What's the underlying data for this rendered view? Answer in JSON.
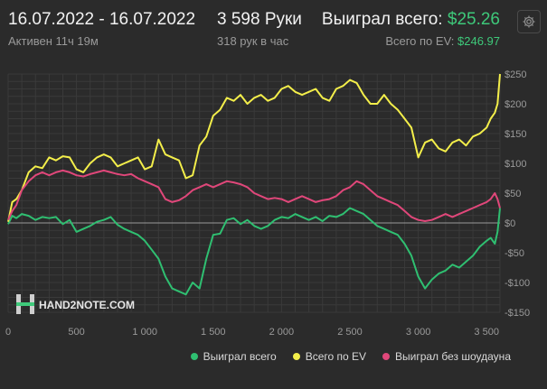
{
  "header": {
    "date_range": "16.07.2022 - 16.07.2022",
    "active_time": "Активен 11ч 19м",
    "hands_count": "3 598 Руки",
    "hands_rate": "318 рук в час",
    "won_label": "Выиграл всего:",
    "won_value": "$25.26",
    "ev_label": "Всего по EV:",
    "ev_value": "$246.97"
  },
  "settings": {
    "icon": "gear-icon"
  },
  "watermark": {
    "text": "HAND2NOTE.COM",
    "icon": "h2n-logo-icon"
  },
  "colors": {
    "won": "#2fbf71",
    "ev": "#f3ee4a",
    "noshowdown": "#e0477a",
    "grid": "#3a3a3a",
    "zero_line": "#9a9a9a"
  },
  "chart_data": {
    "type": "line",
    "xlim": [
      0,
      3598
    ],
    "ylim": [
      -150,
      250
    ],
    "x_ticks": [
      0,
      500,
      1000,
      1500,
      2000,
      2500,
      3000,
      3500
    ],
    "x_tick_labels": [
      "0",
      "500",
      "1 000",
      "1 500",
      "2 000",
      "2 500",
      "3 000",
      "3 500"
    ],
    "y_ticks": [
      250,
      200,
      150,
      100,
      50,
      0,
      -50,
      -100,
      -150
    ],
    "y_tick_labels": [
      "$250",
      "$200",
      "$150",
      "$100",
      "$50",
      "$0",
      "-$50",
      "-$100",
      "-$150"
    ],
    "grid": true,
    "legend_position": "bottom-right",
    "series": [
      {
        "name": "Выиграл всего",
        "key": "won",
        "x": [
          0,
          30,
          60,
          100,
          150,
          200,
          250,
          300,
          350,
          400,
          450,
          500,
          550,
          600,
          650,
          700,
          750,
          800,
          850,
          900,
          950,
          1000,
          1050,
          1100,
          1150,
          1200,
          1250,
          1300,
          1350,
          1400,
          1450,
          1500,
          1550,
          1600,
          1650,
          1700,
          1750,
          1800,
          1850,
          1900,
          1950,
          2000,
          2050,
          2100,
          2150,
          2200,
          2250,
          2300,
          2350,
          2400,
          2450,
          2500,
          2550,
          2600,
          2650,
          2700,
          2750,
          2800,
          2850,
          2900,
          2950,
          3000,
          3050,
          3100,
          3150,
          3200,
          3250,
          3300,
          3350,
          3400,
          3450,
          3500,
          3530,
          3560,
          3580,
          3598
        ],
        "y": [
          -2,
          12,
          8,
          15,
          12,
          5,
          10,
          8,
          10,
          -2,
          5,
          -15,
          -10,
          -5,
          2,
          5,
          10,
          -3,
          -10,
          -15,
          -20,
          -30,
          -45,
          -60,
          -90,
          -110,
          -115,
          -120,
          -100,
          -110,
          -60,
          -20,
          -18,
          5,
          8,
          -2,
          5,
          -5,
          -10,
          -5,
          5,
          10,
          8,
          15,
          10,
          5,
          10,
          3,
          12,
          10,
          15,
          25,
          20,
          15,
          5,
          -5,
          -10,
          -15,
          -20,
          -35,
          -55,
          -90,
          -110,
          -95,
          -85,
          -80,
          -70,
          -75,
          -65,
          -55,
          -40,
          -30,
          -25,
          -35,
          -15,
          25
        ]
      },
      {
        "name": "Всего по EV",
        "key": "ev",
        "x": [
          0,
          30,
          60,
          100,
          150,
          200,
          250,
          300,
          350,
          400,
          450,
          500,
          550,
          600,
          650,
          700,
          750,
          800,
          850,
          900,
          950,
          1000,
          1050,
          1100,
          1150,
          1200,
          1250,
          1300,
          1350,
          1400,
          1450,
          1500,
          1550,
          1600,
          1650,
          1700,
          1750,
          1800,
          1850,
          1900,
          1950,
          2000,
          2050,
          2100,
          2150,
          2200,
          2250,
          2300,
          2350,
          2400,
          2450,
          2500,
          2550,
          2600,
          2650,
          2700,
          2750,
          2800,
          2850,
          2900,
          2950,
          3000,
          3050,
          3100,
          3150,
          3200,
          3250,
          3300,
          3350,
          3400,
          3450,
          3500,
          3530,
          3560,
          3580,
          3598
        ],
        "y": [
          2,
          35,
          40,
          55,
          85,
          95,
          92,
          110,
          105,
          112,
          110,
          90,
          85,
          100,
          110,
          115,
          110,
          95,
          100,
          105,
          110,
          90,
          95,
          140,
          115,
          110,
          105,
          75,
          80,
          130,
          145,
          180,
          190,
          210,
          205,
          215,
          200,
          210,
          215,
          205,
          210,
          225,
          230,
          220,
          215,
          220,
          225,
          210,
          205,
          225,
          230,
          240,
          235,
          215,
          200,
          200,
          215,
          200,
          190,
          175,
          160,
          110,
          135,
          140,
          125,
          120,
          135,
          140,
          130,
          145,
          150,
          160,
          175,
          185,
          200,
          250
        ]
      },
      {
        "name": "Выиграл без шоудауна",
        "key": "noshowdown",
        "x": [
          0,
          30,
          60,
          100,
          150,
          200,
          250,
          300,
          350,
          400,
          450,
          500,
          550,
          600,
          650,
          700,
          750,
          800,
          850,
          900,
          950,
          1000,
          1050,
          1100,
          1150,
          1200,
          1250,
          1300,
          1350,
          1400,
          1450,
          1500,
          1550,
          1600,
          1650,
          1700,
          1750,
          1800,
          1850,
          1900,
          1950,
          2000,
          2050,
          2100,
          2150,
          2200,
          2250,
          2300,
          2350,
          2400,
          2450,
          2500,
          2550,
          2600,
          2650,
          2700,
          2750,
          2800,
          2850,
          2900,
          2950,
          3000,
          3050,
          3100,
          3150,
          3200,
          3250,
          3300,
          3350,
          3400,
          3450,
          3500,
          3530,
          3560,
          3580,
          3598
        ],
        "y": [
          5,
          20,
          30,
          55,
          70,
          80,
          85,
          80,
          85,
          88,
          85,
          80,
          78,
          82,
          85,
          88,
          85,
          82,
          80,
          82,
          75,
          70,
          65,
          60,
          40,
          35,
          38,
          45,
          55,
          60,
          65,
          60,
          65,
          70,
          68,
          65,
          60,
          50,
          45,
          40,
          42,
          40,
          35,
          40,
          45,
          40,
          35,
          38,
          40,
          45,
          55,
          60,
          70,
          65,
          55,
          45,
          40,
          35,
          30,
          20,
          10,
          5,
          3,
          5,
          10,
          15,
          10,
          15,
          20,
          25,
          30,
          35,
          40,
          50,
          40,
          25
        ]
      }
    ]
  },
  "legend": [
    {
      "label": "Выиграл всего",
      "key": "won"
    },
    {
      "label": "Всего по EV",
      "key": "ev"
    },
    {
      "label": "Выиграл без шоудауна",
      "key": "noshowdown"
    }
  ]
}
